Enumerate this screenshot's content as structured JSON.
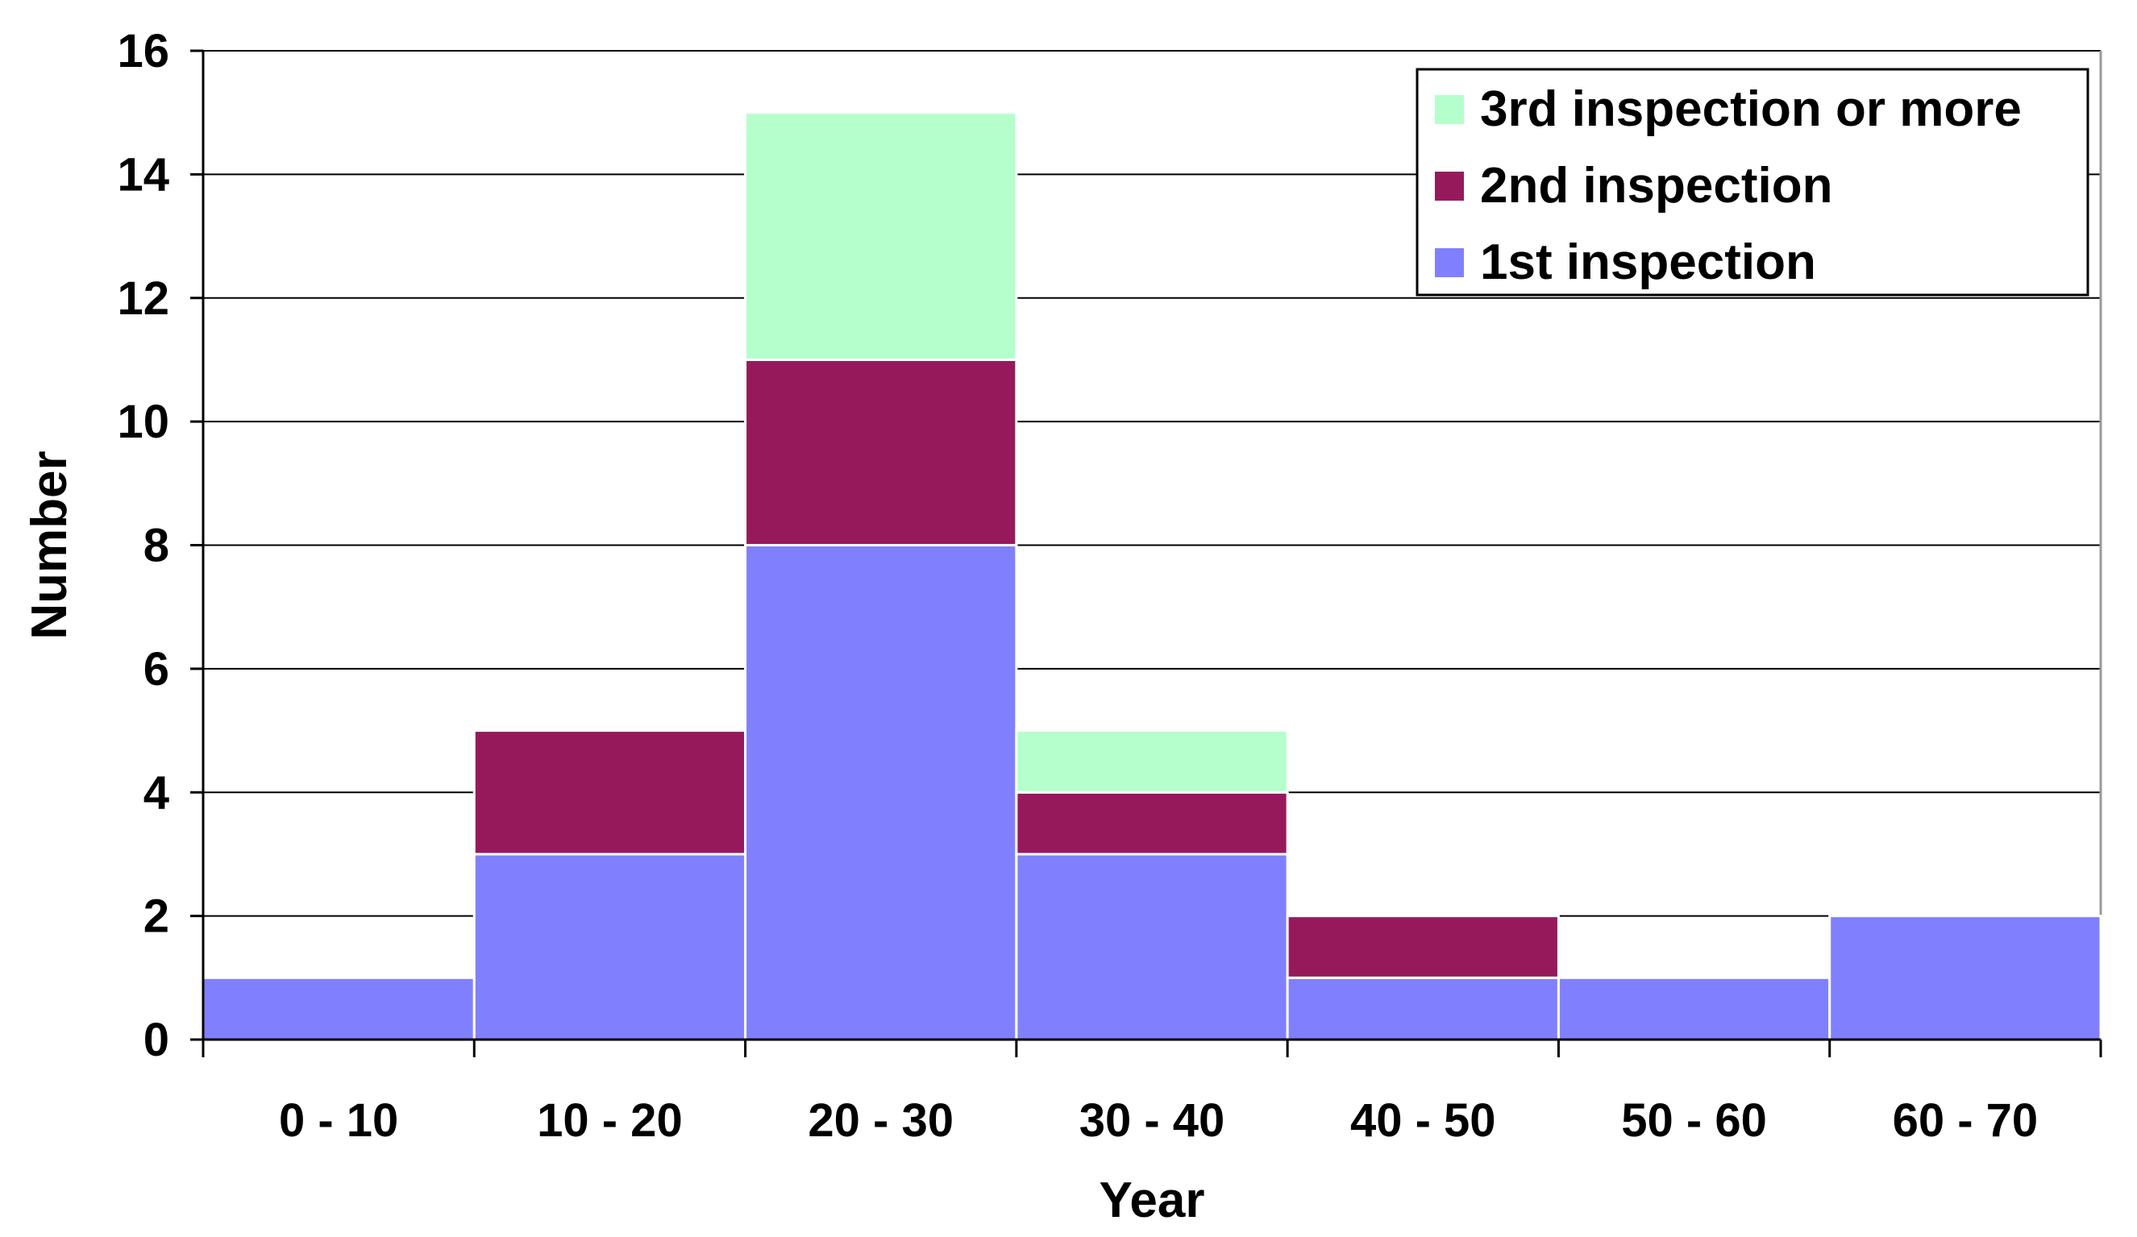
{
  "chart_data": {
    "type": "bar",
    "stacked": true,
    "categories": [
      "0 - 10",
      "10 - 20",
      "20 - 30",
      "30 - 40",
      "40 - 50",
      "50 - 60",
      "60 - 70"
    ],
    "series": [
      {
        "name": "1st inspection",
        "color": "#8080ff",
        "values": [
          1,
          3,
          8,
          3,
          1,
          1,
          2
        ]
      },
      {
        "name": "2nd inspection",
        "color": "#961a5b",
        "values": [
          0,
          2,
          3,
          1,
          1,
          0,
          0
        ]
      },
      {
        "name": "3rd inspection or more",
        "color": "#b4ffcc",
        "values": [
          0,
          0,
          4,
          1,
          0,
          0,
          0
        ]
      }
    ],
    "legend_order": [
      "3rd inspection or more",
      "2nd inspection",
      "1st inspection"
    ],
    "xlabel": "Year",
    "ylabel": "Number",
    "ylim": [
      0,
      16
    ],
    "yticks": [
      0,
      2,
      4,
      6,
      8,
      10,
      12,
      14,
      16
    ],
    "grid": true,
    "legend_position": "top-right"
  }
}
